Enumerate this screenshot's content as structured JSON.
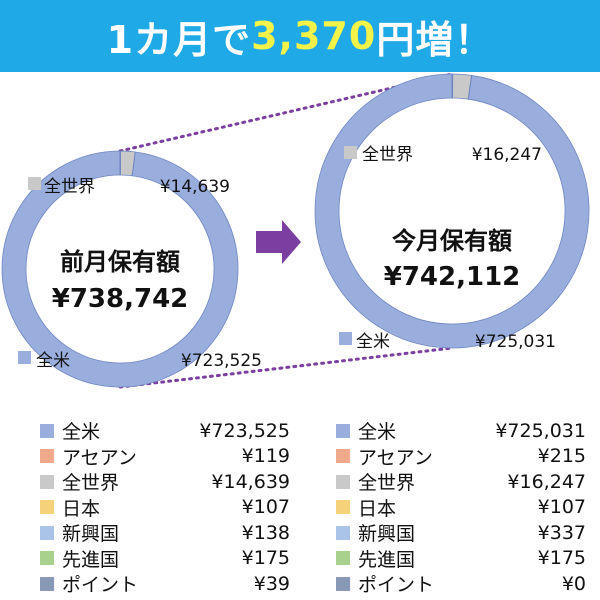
{
  "banner": {
    "prefix": "1カ月で",
    "amount": "3,370",
    "suffix": "円増！",
    "accent_color": "#f4f34a",
    "background": "#1fa9e6"
  },
  "chart_data": [
    {
      "type": "pie",
      "title": "前月保有額",
      "total": "¥738,742",
      "categories": [
        "全米",
        "アセアン",
        "全世界",
        "日本",
        "新興国",
        "先進国",
        "ポイント"
      ],
      "values": [
        723525,
        119,
        14639,
        107,
        138,
        175,
        39
      ],
      "value_labels": [
        "¥723,525",
        "¥119",
        "¥14,639",
        "¥107",
        "¥138",
        "¥175",
        "¥39"
      ],
      "colors": [
        "#9aaedd",
        "#f0a88a",
        "#c9c9c9",
        "#f5d27a",
        "#a9c4e8",
        "#a9d18e",
        "#8899b6"
      ],
      "callouts": [
        {
          "category": "全世界",
          "value": "¥14,639"
        },
        {
          "category": "全米",
          "value": "¥723,525"
        }
      ]
    },
    {
      "type": "pie",
      "title": "今月保有額",
      "total": "¥742,112",
      "categories": [
        "全米",
        "アセアン",
        "全世界",
        "日本",
        "新興国",
        "先進国",
        "ポイント"
      ],
      "values": [
        725031,
        215,
        16247,
        107,
        337,
        175,
        0
      ],
      "value_labels": [
        "¥725,031",
        "¥215",
        "¥16,247",
        "¥107",
        "¥337",
        "¥175",
        "¥0"
      ],
      "colors": [
        "#9aaedd",
        "#f0a88a",
        "#c9c9c9",
        "#f5d27a",
        "#a9c4e8",
        "#a9d18e",
        "#8899b6"
      ],
      "callouts": [
        {
          "category": "全世界",
          "value": "¥16,247"
        },
        {
          "category": "全米",
          "value": "¥725,031"
        }
      ]
    }
  ],
  "arrow_color": "#7a3fa0"
}
